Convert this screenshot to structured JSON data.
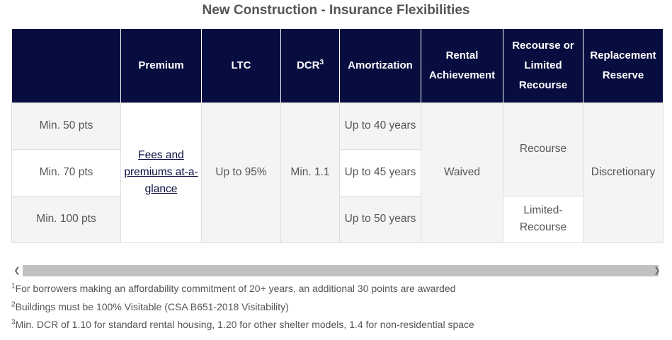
{
  "title": "New Construction - Insurance Flexibilities",
  "table": {
    "headers": {
      "blank": "",
      "premium": "Premium",
      "ltc": "LTC",
      "dcr": "DCR",
      "dcr_sup": "3",
      "amortization": "Amortization",
      "rental": "Rental Achievement",
      "recourse": "Recourse or Limited Recourse",
      "replacement": "Replacement Reserve"
    },
    "points": [
      "Min. 50 pts",
      "Min. 70 pts",
      "Min. 100 pts"
    ],
    "premium_link": "Fees and premiums at-a-glance",
    "ltc": "Up to 95%",
    "dcr": "Min. 1.1",
    "amortization": [
      "Up to 40 years",
      "Up to 45 years",
      "Up to 50 years"
    ],
    "rental": "Waived",
    "recourse": [
      "Recourse",
      "Limited-Recourse"
    ],
    "replacement": "Discretionary"
  },
  "scrollbar": {
    "left_arrow": "❮",
    "right_arrow": "❯"
  },
  "footnotes": [
    {
      "num": "1",
      "text": "For borrowers making an affordability commitment of 20+ years, an additional 30 points are awarded"
    },
    {
      "num": "2",
      "text": "Buildings must be 100% Visitable (CSA B651-2018 Visitability)"
    },
    {
      "num": "3",
      "text": "Min. DCR of 1.10 for standard rental housing, 1.20 for other shelter models, 1.4 for non-residential space"
    }
  ]
}
